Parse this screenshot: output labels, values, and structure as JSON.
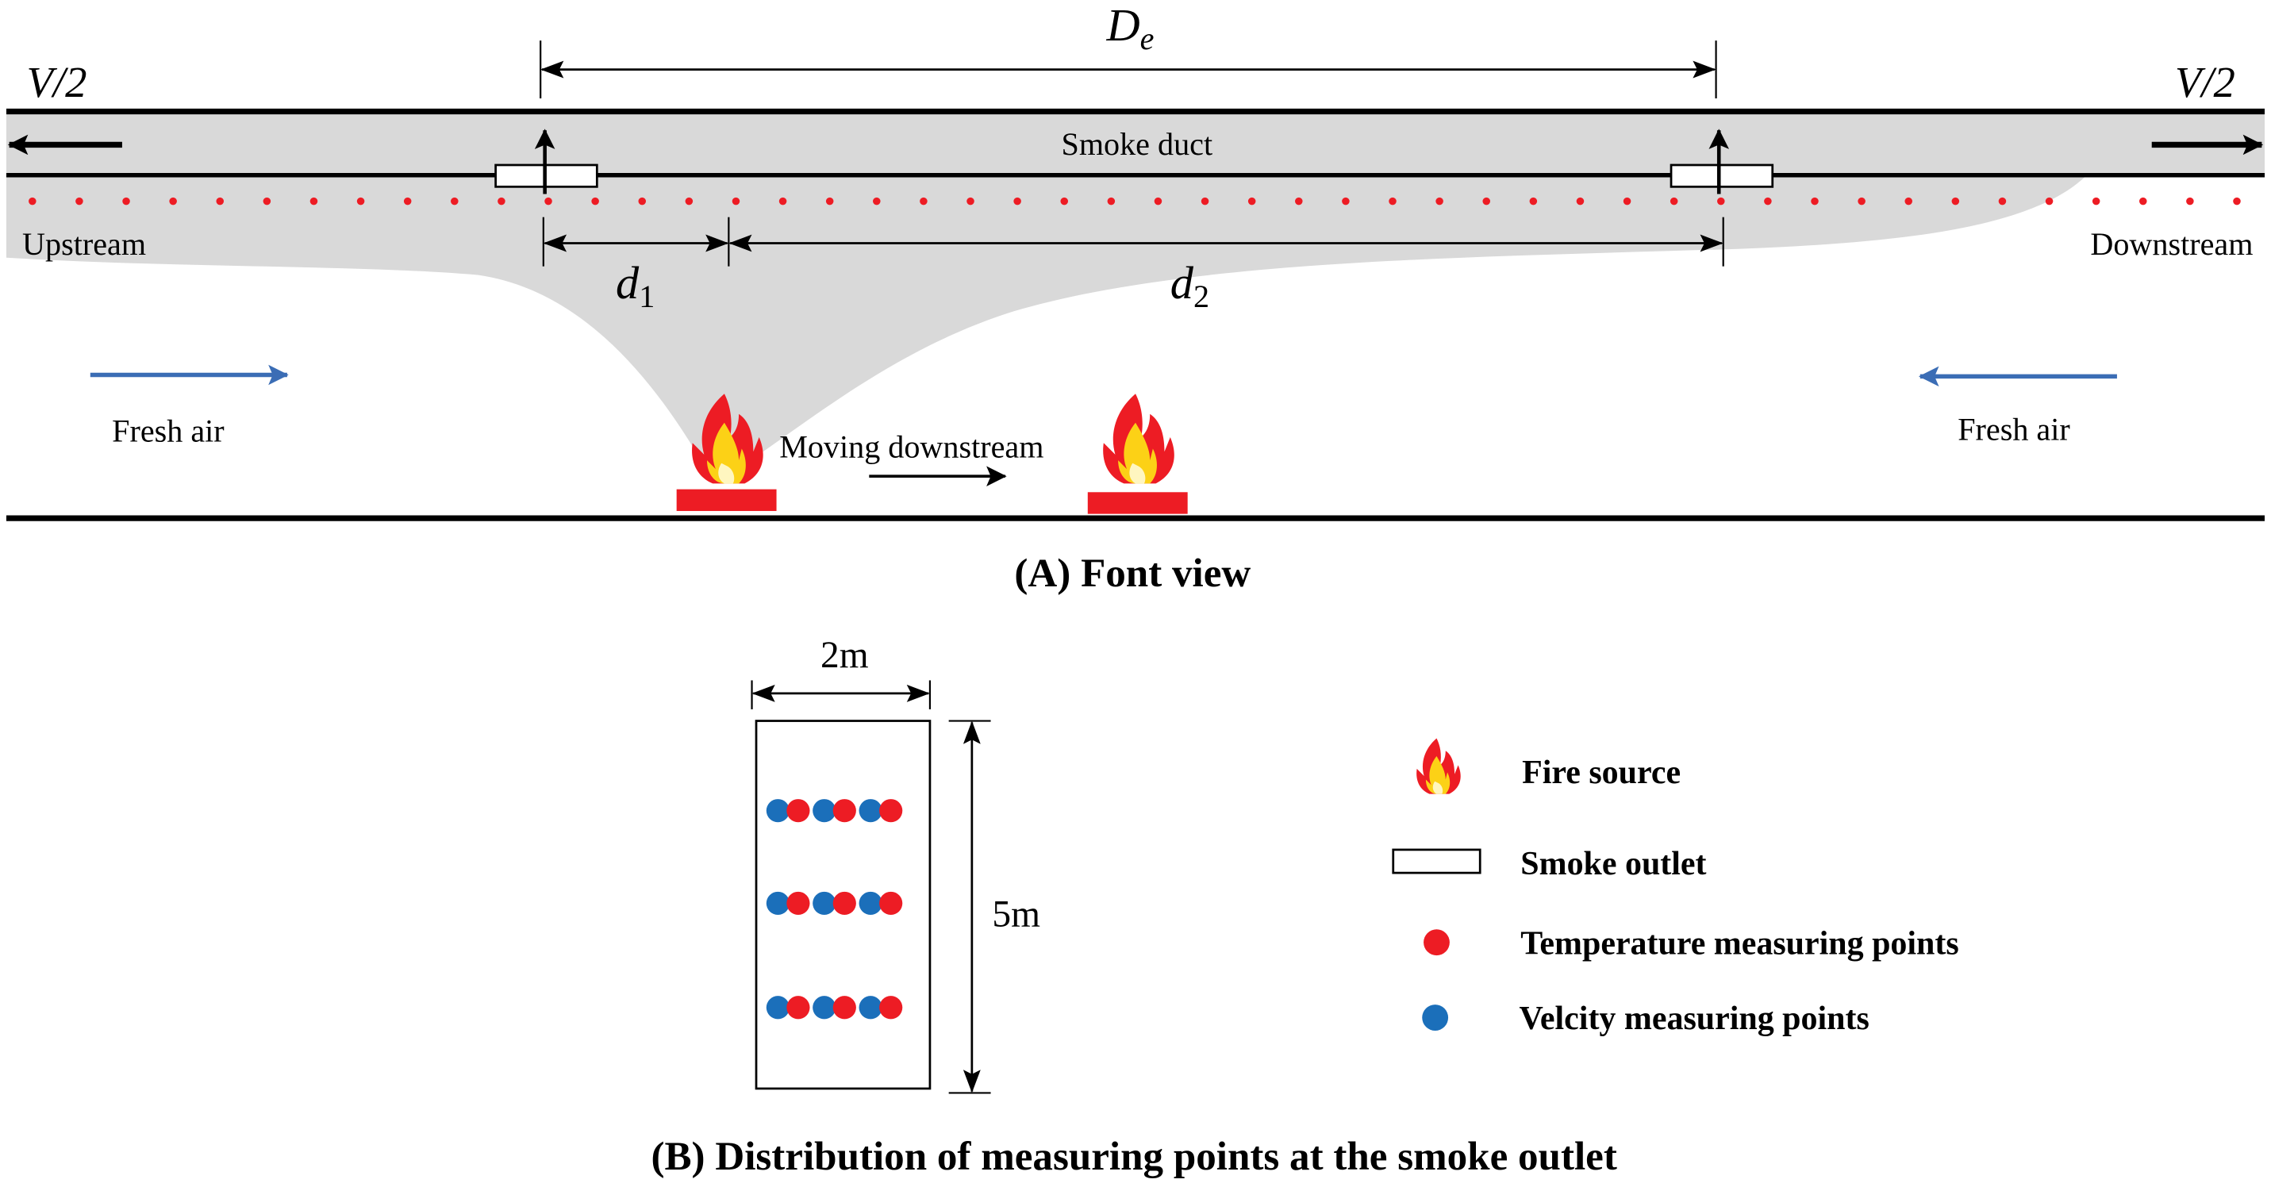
{
  "panel_a": {
    "caption": "(A) Font view",
    "v_half_left": "V/2",
    "v_half_right": "V/2",
    "de_label": "D",
    "de_sub": "e",
    "d1_label": "d",
    "d1_sub": "1",
    "d2_label": "d",
    "d2_sub": "2",
    "smoke_duct": "Smoke duct",
    "upstream": "Upstream",
    "downstream": "Downstream",
    "fresh_air_left": "Fresh air",
    "fresh_air_right": "Fresh air",
    "moving": "Moving downstream"
  },
  "panel_b": {
    "caption": "(B) Distribution of measuring points at the smoke outlet",
    "width_label": "2m",
    "height_label": "5m"
  },
  "legend": [
    {
      "icon": "fire-icon",
      "label": "Fire source"
    },
    {
      "icon": "smoke-outlet-rect",
      "label": "Smoke outlet"
    },
    {
      "icon": "red-dot",
      "label": "Temperature measuring points"
    },
    {
      "icon": "blue-dot",
      "label": "Velcity measuring points"
    }
  ],
  "colors": {
    "smoke": "#d9d9d9",
    "temperature": "#ed1c24",
    "velocity": "#1b6fba",
    "fresh_air_arrow": "#3b6db5"
  }
}
